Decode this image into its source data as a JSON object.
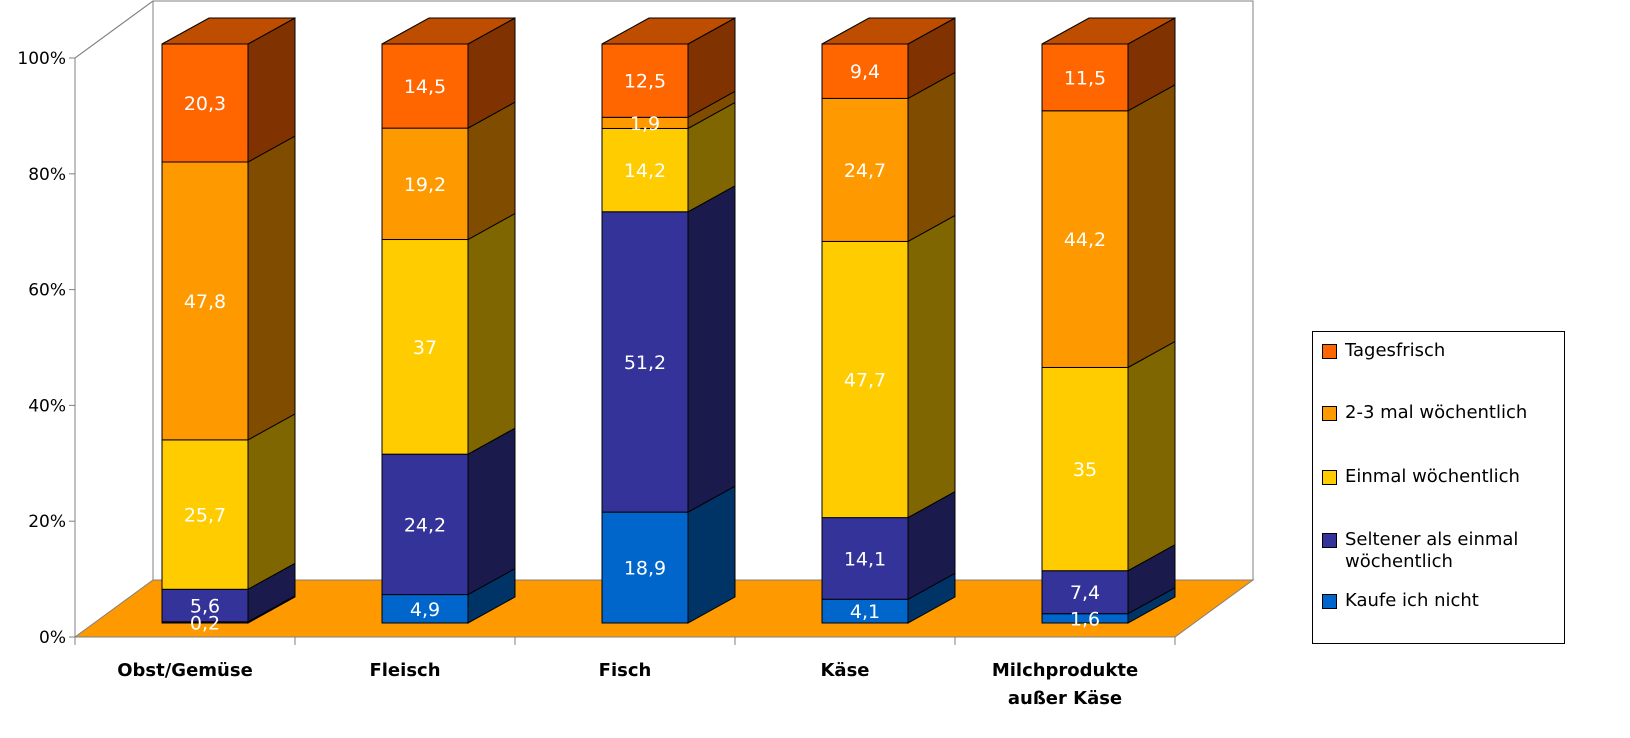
{
  "chart_data": {
    "type": "bar",
    "stacked": true,
    "percent_stacked": true,
    "three_d": true,
    "categories": [
      "Obst/Gemüse",
      "Fleisch",
      "Fisch",
      "Käse",
      "Milchprodukte außer Käse"
    ],
    "series": [
      {
        "name": "Kaufe ich nicht",
        "color": "#0066CC",
        "values": [
          0.2,
          4.9,
          18.9,
          4.1,
          1.6
        ]
      },
      {
        "name": "Seltener als einmal wöchentlich",
        "color": "#333399",
        "values": [
          5.6,
          24.2,
          51.2,
          14.1,
          7.4
        ]
      },
      {
        "name": "Einmal wöchentlich",
        "color": "#FFCC00",
        "values": [
          25.7,
          37,
          14.2,
          47.7,
          35
        ]
      },
      {
        "name": "2-3 mal wöchentlich",
        "color": "#FF9900",
        "values": [
          47.8,
          19.2,
          1.9,
          24.7,
          44.2
        ]
      },
      {
        "name": "Tagesfrisch",
        "color": "#FF6600",
        "values": [
          20.3,
          14.5,
          12.5,
          9.4,
          11.5
        ]
      }
    ],
    "y_ticks": [
      "0%",
      "20%",
      "40%",
      "60%",
      "80%",
      "100%"
    ],
    "ylim": [
      0,
      100
    ],
    "title": "",
    "xlabel": "",
    "ylabel": "",
    "grid": false,
    "legend_position": "right",
    "floor_color": "#FF9900"
  },
  "legend": {
    "items": [
      {
        "label": "Tagesfrisch",
        "color": "#FF6600"
      },
      {
        "label": "2-3 mal wöchentlich",
        "color": "#FF9900"
      },
      {
        "label": "Einmal wöchentlich",
        "color": "#FFCC00"
      },
      {
        "label": "Seltener als einmal\nwöchentlich",
        "color": "#333399"
      },
      {
        "label": "Kaufe ich nicht",
        "color": "#0066CC"
      }
    ]
  }
}
